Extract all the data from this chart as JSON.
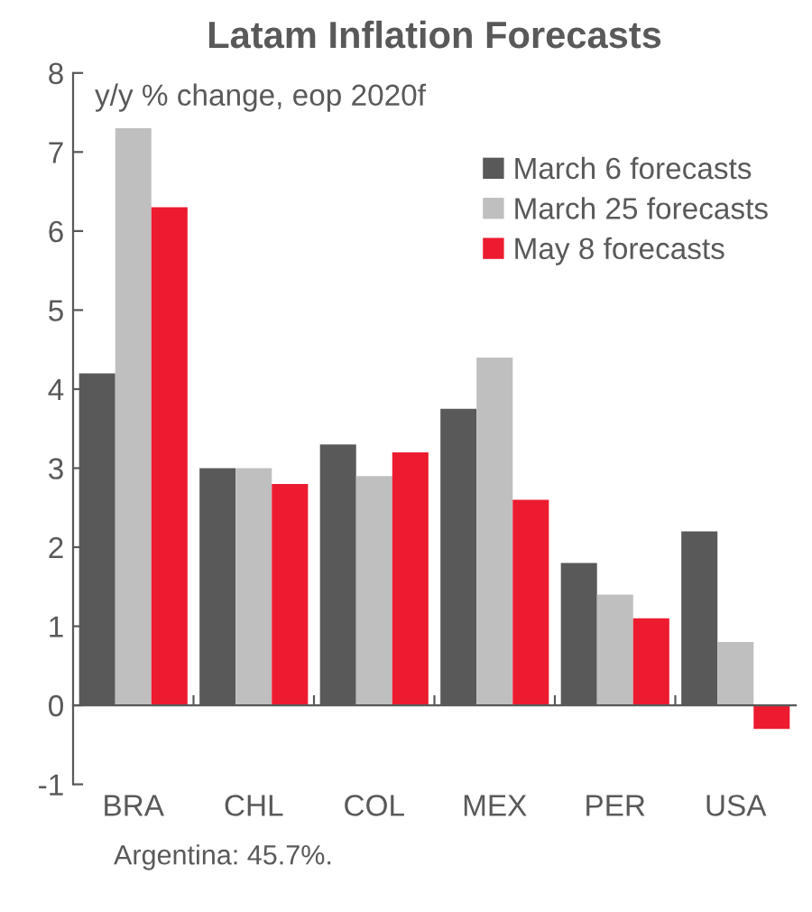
{
  "chart_data": {
    "type": "bar",
    "title": "Latam Inflation Forecasts",
    "subtitle": "y/y % change, eop 2020f",
    "categories": [
      "BRA",
      "CHL",
      "COL",
      "MEX",
      "PER",
      "USA"
    ],
    "series": [
      {
        "name": "March 6 forecasts",
        "color": "#595959",
        "values": [
          4.2,
          3.0,
          3.3,
          3.75,
          1.8,
          2.2
        ]
      },
      {
        "name": "March 25 forecasts",
        "color": "#bfbfbf",
        "values": [
          7.3,
          3.0,
          2.9,
          4.4,
          1.4,
          0.8
        ]
      },
      {
        "name": "May 8 forecasts",
        "color": "#ed1b2f",
        "values": [
          6.3,
          2.8,
          3.2,
          2.6,
          1.1,
          -0.3
        ]
      }
    ],
    "ylim": [
      -1,
      8
    ],
    "yticks": [
      -1,
      0,
      1,
      2,
      3,
      4,
      5,
      6,
      7,
      8
    ],
    "legend": "top right",
    "annotations": [
      "Argentina: 45.7%."
    ]
  }
}
